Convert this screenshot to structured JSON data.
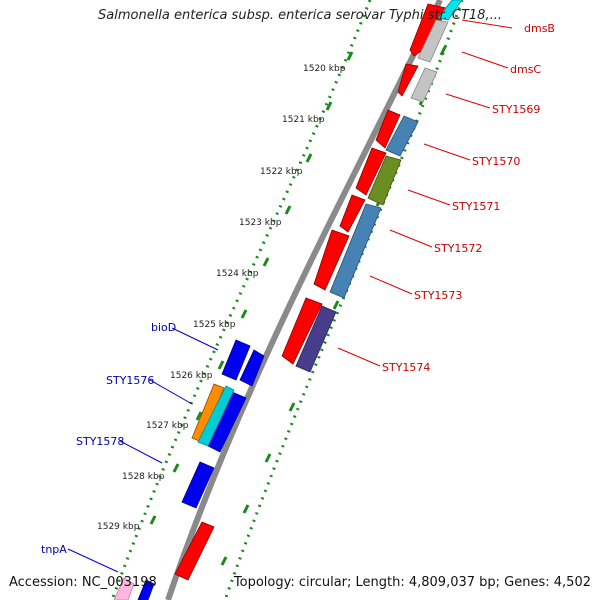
{
  "title": "Salmonella enterica subsp. enterica serovar Typhi str. CT18,...",
  "footer": {
    "accession": "Accession: NC_003198",
    "summary": "Topology: circular; Length: 4,809,037 bp; Genes: 4,502"
  },
  "kbp_labels": [
    "1520 kbp",
    "1521 kbp",
    "1522 kbp",
    "1523 kbp",
    "1524 kbp",
    "1525 kbp",
    "1526 kbp",
    "1527 kbp",
    "1528 kbp",
    "1529 kbp"
  ],
  "gene_labels_right": [
    "dmsB",
    "dmsC",
    "STY1569",
    "STY1570",
    "STY1571",
    "STY1572",
    "STY1573",
    "STY1574"
  ],
  "gene_labels_left": [
    "bioD",
    "STY1576",
    "STY1578",
    "tnpA"
  ],
  "colors": {
    "red": "#ff0000",
    "blue": "#0000ff",
    "gray": "#bdbdbd",
    "steelblue": "#4682b4",
    "olive": "#6b8e23",
    "darkslateblue": "#483d8b",
    "orange": "#ff8c00",
    "cyan": "#00d8e0",
    "pink": "#ffb6e1",
    "right_label": "#cc0000",
    "left_label": "#0000aa",
    "tick_green": "#007700"
  }
}
